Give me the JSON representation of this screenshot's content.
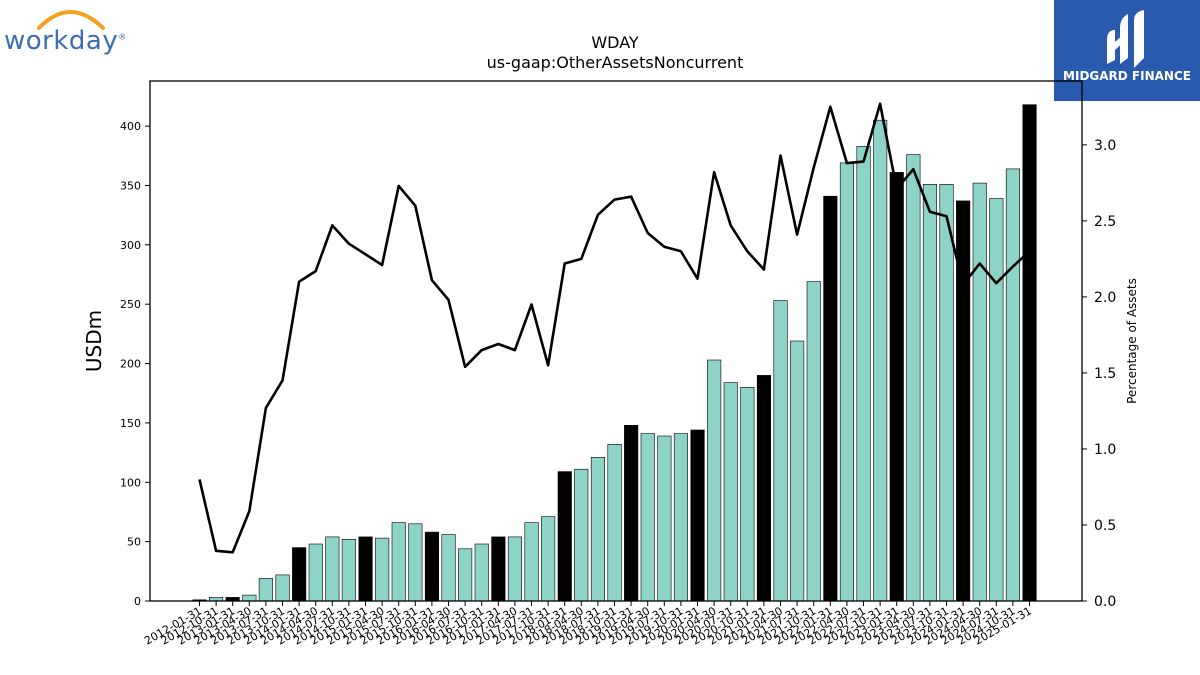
{
  "logos": {
    "left_text": "workday",
    "left_mark": "®",
    "right_text": "MIDGARD FINANCE"
  },
  "chart_data": {
    "type": "bar",
    "title": "WDAY",
    "subtitle": "us-gaap:OtherAssetsNoncurrent",
    "ylabel": "USDm",
    "y2label": "Percentage of Assets",
    "ylim": [
      0,
      438
    ],
    "y2lim": [
      0,
      3.42
    ],
    "yticks": [
      0,
      50,
      100,
      150,
      200,
      250,
      300,
      350,
      400
    ],
    "y2ticks": [
      "0.0",
      "0.5",
      "1.0",
      "1.5",
      "2.0",
      "2.5",
      "3.0"
    ],
    "colors": {
      "quarter": "#8ed3c7",
      "fiscal_year_end": "#000000",
      "line": "#000000"
    },
    "categories": [
      "2012-01-31",
      "2012-10-31",
      "2013-01-31",
      "2013-04-30",
      "2013-07-31",
      "2013-10-31",
      "2014-01-31",
      "2014-04-30",
      "2014-07-31",
      "2014-10-31",
      "2015-01-31",
      "2015-04-30",
      "2015-07-31",
      "2015-10-31",
      "2016-01-31",
      "2016-04-30",
      "2016-07-31",
      "2016-10-31",
      "2017-01-31",
      "2017-04-30",
      "2017-07-31",
      "2017-10-31",
      "2018-01-31",
      "2018-04-30",
      "2018-07-31",
      "2018-10-31",
      "2019-01-31",
      "2019-04-30",
      "2019-07-31",
      "2019-10-31",
      "2020-01-31",
      "2020-04-30",
      "2020-07-31",
      "2020-10-31",
      "2021-01-31",
      "2021-04-30",
      "2021-07-31",
      "2021-10-31",
      "2022-01-31",
      "2022-04-30",
      "2022-07-31",
      "2022-10-31",
      "2023-01-31",
      "2023-04-30",
      "2023-07-31",
      "2023-10-31",
      "2024-01-31",
      "2024-04-30",
      "2024-07-31",
      "2024-10-31",
      "2025-01-31"
    ],
    "series": [
      {
        "values": [
          1,
          3,
          3,
          5,
          19,
          22,
          45,
          48,
          54,
          52,
          54,
          53,
          66,
          65,
          58,
          56,
          44,
          48,
          54,
          54,
          66,
          71,
          109,
          111,
          121,
          132,
          148,
          141,
          139,
          141,
          144,
          203,
          184,
          180,
          190,
          253,
          219,
          269,
          341,
          369,
          383,
          405,
          361,
          376,
          351,
          351,
          337,
          352,
          339,
          364,
          418
        ],
        "fiscal_year_end": [
          true,
          false,
          true,
          false,
          false,
          false,
          true,
          false,
          false,
          false,
          true,
          false,
          false,
          false,
          true,
          false,
          false,
          false,
          true,
          false,
          false,
          false,
          true,
          false,
          false,
          false,
          true,
          false,
          false,
          false,
          true,
          false,
          false,
          false,
          true,
          false,
          false,
          false,
          true,
          false,
          false,
          false,
          true,
          false,
          false,
          false,
          true,
          false,
          false,
          false,
          true
        ]
      },
      {
        "values": [
          0.8,
          0.33,
          0.32,
          0.59,
          1.27,
          1.45,
          2.1,
          2.17,
          2.47,
          2.35,
          2.28,
          2.21,
          2.73,
          2.6,
          2.11,
          1.98,
          1.54,
          1.65,
          1.69,
          1.65,
          1.95,
          1.55,
          2.22,
          2.25,
          2.54,
          2.64,
          2.66,
          2.42,
          2.33,
          2.3,
          2.12,
          2.82,
          2.47,
          2.3,
          2.18,
          2.93,
          2.41,
          2.85,
          3.25,
          2.88,
          2.89,
          3.27,
          2.71,
          2.84,
          2.56,
          2.53,
          2.08,
          2.22,
          2.09,
          2.2,
          2.3
        ]
      }
    ]
  }
}
